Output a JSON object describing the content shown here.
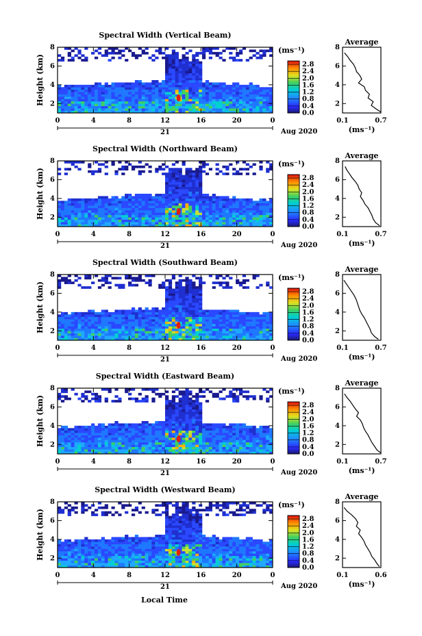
{
  "figure": {
    "xlabel": "Local Time",
    "date_label": "Aug 2020",
    "day_label": "21"
  },
  "chart_data": [
    {
      "type": "heatmap",
      "title": "Spectral Width (Vertical Beam)",
      "ylabel": "Height (km)",
      "xlabel": "Local Time",
      "x_ticks": [
        "0",
        "4",
        "8",
        "12",
        "16",
        "20",
        "0"
      ],
      "y_ticks": [
        "2",
        "4",
        "6",
        "8"
      ],
      "xlim": [
        0,
        24
      ],
      "ylim": [
        1,
        8
      ],
      "colorbar": {
        "unit": "(ms⁻¹)",
        "ticks": [
          "0.0",
          "0.4",
          "0.8",
          "1.2",
          "1.6",
          "2.0",
          "2.4",
          "2.8"
        ],
        "range": [
          0,
          3.0
        ]
      },
      "average_profile": {
        "title": "Average",
        "xlabel": "(ms⁻¹)",
        "x_ticks": [
          "0.1",
          "0.7"
        ],
        "xlim": [
          0.1,
          0.7
        ],
        "y_ticks": [
          "2",
          "4",
          "6",
          "8"
        ],
        "ylim": [
          1,
          8
        ],
        "height": [
          7.4,
          7.0,
          6.6,
          6.2,
          5.8,
          5.4,
          5.0,
          4.6,
          4.2,
          3.8,
          3.4,
          3.0,
          2.6,
          2.2,
          1.8,
          1.4,
          1.1
        ],
        "width": [
          0.13,
          0.18,
          0.22,
          0.27,
          0.3,
          0.32,
          0.37,
          0.4,
          0.35,
          0.44,
          0.46,
          0.52,
          0.5,
          0.58,
          0.55,
          0.63,
          0.7
        ]
      }
    },
    {
      "type": "heatmap",
      "title": "Spectral Width (Northward Beam)",
      "ylabel": "Height (km)",
      "xlabel": "Local Time",
      "x_ticks": [
        "0",
        "4",
        "8",
        "12",
        "16",
        "20",
        "0"
      ],
      "y_ticks": [
        "2",
        "4",
        "6",
        "8"
      ],
      "xlim": [
        0,
        24
      ],
      "ylim": [
        1,
        8
      ],
      "colorbar": {
        "unit": "(ms⁻¹)",
        "ticks": [
          "0.0",
          "0.4",
          "0.8",
          "1.2",
          "1.6",
          "2.0",
          "2.4",
          "2.8"
        ],
        "range": [
          0,
          3.0
        ]
      },
      "average_profile": {
        "title": "Average",
        "xlabel": "(ms⁻¹)",
        "x_ticks": [
          "0.1",
          "0.7"
        ],
        "xlim": [
          0.1,
          0.7
        ],
        "y_ticks": [
          "2",
          "4",
          "6",
          "8"
        ],
        "ylim": [
          1,
          8
        ],
        "height": [
          7.4,
          7.0,
          6.6,
          6.2,
          5.8,
          5.4,
          5.0,
          4.6,
          4.2,
          3.8,
          3.4,
          3.0,
          2.6,
          2.2,
          1.8,
          1.4,
          1.1
        ],
        "width": [
          0.14,
          0.17,
          0.21,
          0.25,
          0.3,
          0.34,
          0.36,
          0.4,
          0.38,
          0.42,
          0.45,
          0.5,
          0.53,
          0.56,
          0.58,
          0.62,
          0.68
        ]
      }
    },
    {
      "type": "heatmap",
      "title": "Spectral Width (Southward Beam)",
      "ylabel": "Height (km)",
      "xlabel": "Local Time",
      "x_ticks": [
        "0",
        "4",
        "8",
        "12",
        "16",
        "20",
        "0"
      ],
      "y_ticks": [
        "2",
        "4",
        "6",
        "8"
      ],
      "xlim": [
        0,
        24
      ],
      "ylim": [
        1,
        8
      ],
      "colorbar": {
        "unit": "(ms⁻¹)",
        "ticks": [
          "0.0",
          "0.4",
          "0.8",
          "1.2",
          "1.6",
          "2.0",
          "2.4",
          "2.8"
        ],
        "range": [
          0,
          3.0
        ]
      },
      "average_profile": {
        "title": "Average",
        "xlabel": "(ms⁻¹)",
        "x_ticks": [
          "0.1",
          "0.7"
        ],
        "xlim": [
          0.1,
          0.7
        ],
        "y_ticks": [
          "2",
          "4",
          "6",
          "8"
        ],
        "ylim": [
          1,
          8
        ],
        "height": [
          7.4,
          7.0,
          6.6,
          6.2,
          5.8,
          5.4,
          5.0,
          4.6,
          4.2,
          3.8,
          3.4,
          3.0,
          2.6,
          2.2,
          1.8,
          1.4,
          1.1
        ],
        "width": [
          0.12,
          0.16,
          0.2,
          0.24,
          0.28,
          0.31,
          0.33,
          0.35,
          0.37,
          0.4,
          0.44,
          0.47,
          0.5,
          0.53,
          0.55,
          0.6,
          0.66
        ]
      }
    },
    {
      "type": "heatmap",
      "title": "Spectral Width (Eastward Beam)",
      "ylabel": "Height (km)",
      "xlabel": "Local Time",
      "x_ticks": [
        "0",
        "4",
        "8",
        "12",
        "16",
        "20",
        "0"
      ],
      "y_ticks": [
        "2",
        "4",
        "6",
        "8"
      ],
      "xlim": [
        0,
        24
      ],
      "ylim": [
        1,
        8
      ],
      "colorbar": {
        "unit": "(ms⁻¹)",
        "ticks": [
          "0.0",
          "0.4",
          "0.8",
          "1.2",
          "1.6",
          "2.0",
          "2.4",
          "2.8"
        ],
        "range": [
          0,
          3.0
        ]
      },
      "average_profile": {
        "title": "Average",
        "xlabel": "(ms⁻¹)",
        "x_ticks": [
          "0.1",
          "0.7"
        ],
        "xlim": [
          0.1,
          0.7
        ],
        "y_ticks": [
          "2",
          "4",
          "6",
          "8"
        ],
        "ylim": [
          1,
          8
        ],
        "height": [
          7.4,
          7.0,
          6.6,
          6.2,
          5.8,
          5.4,
          5.0,
          4.6,
          4.2,
          3.8,
          3.4,
          3.0,
          2.6,
          2.2,
          1.8,
          1.4,
          1.1
        ],
        "width": [
          0.13,
          0.17,
          0.22,
          0.26,
          0.3,
          0.35,
          0.32,
          0.38,
          0.41,
          0.43,
          0.46,
          0.5,
          0.53,
          0.56,
          0.6,
          0.64,
          0.7
        ]
      }
    },
    {
      "type": "heatmap",
      "title": "Spectral Width (Westward Beam)",
      "ylabel": "Height (km)",
      "xlabel": "Local Time",
      "x_ticks": [
        "0",
        "4",
        "8",
        "12",
        "16",
        "20",
        "0"
      ],
      "y_ticks": [
        "2",
        "4",
        "6",
        "8"
      ],
      "xlim": [
        0,
        24
      ],
      "ylim": [
        1,
        8
      ],
      "colorbar": {
        "unit": "(ms⁻¹)",
        "ticks": [
          "0.0",
          "0.4",
          "0.8",
          "1.2",
          "1.6",
          "2.0",
          "2.4",
          "2.8"
        ],
        "range": [
          0,
          3.0
        ]
      },
      "average_profile": {
        "title": "Average",
        "xlabel": "(ms⁻¹)",
        "x_ticks": [
          "0.1",
          "0.6"
        ],
        "xlim": [
          0.1,
          0.6
        ],
        "y_ticks": [
          "2",
          "4",
          "6",
          "8"
        ],
        "ylim": [
          1,
          8
        ],
        "height": [
          7.4,
          7.0,
          6.6,
          6.2,
          5.8,
          5.4,
          5.0,
          4.6,
          4.2,
          3.8,
          3.4,
          3.0,
          2.6,
          2.2,
          1.8,
          1.4,
          1.1
        ],
        "width": [
          0.12,
          0.16,
          0.22,
          0.27,
          0.3,
          0.28,
          0.33,
          0.31,
          0.35,
          0.38,
          0.4,
          0.43,
          0.46,
          0.48,
          0.52,
          0.55,
          0.58
        ]
      }
    }
  ]
}
